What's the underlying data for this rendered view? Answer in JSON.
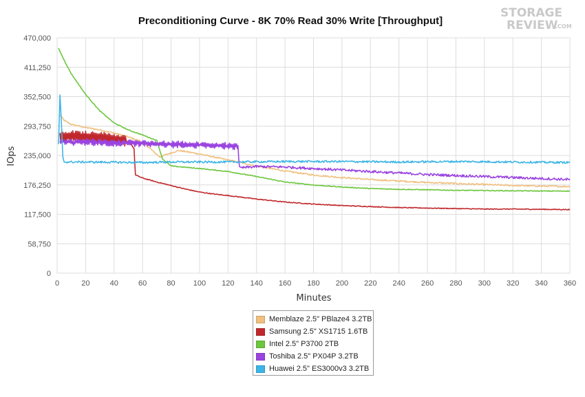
{
  "logo": {
    "line1": "STORAGE",
    "line2": "REVIEW",
    "suffix": ".COM"
  },
  "chart_data": {
    "type": "line",
    "title": "Preconditioning Curve - 8K 70% Read 30% Write [Throughput]",
    "xlabel": "Minutes",
    "ylabel": "IOps",
    "xlim": [
      0,
      360
    ],
    "ylim": [
      0,
      470000
    ],
    "x_ticks": [
      0,
      20,
      40,
      60,
      80,
      100,
      120,
      140,
      160,
      180,
      200,
      220,
      240,
      260,
      280,
      300,
      320,
      340,
      360
    ],
    "y_ticks": [
      0,
      58750,
      117500,
      176250,
      235000,
      293750,
      352500,
      411250,
      470000
    ],
    "y_tick_labels": [
      "0",
      "58,750",
      "117,500",
      "176,250",
      "235,000",
      "293,750",
      "352,500",
      "411,250",
      "470,000"
    ],
    "grid": true,
    "legend_position": "bottom",
    "series": [
      {
        "name": "Memblaze 2.5\" PBlaze4 3.2TB",
        "color": "#f0c080",
        "noise": 1500,
        "points": [
          [
            2,
            316000
          ],
          [
            5,
            305000
          ],
          [
            10,
            297000
          ],
          [
            20,
            291000
          ],
          [
            30,
            286000
          ],
          [
            40,
            280000
          ],
          [
            50,
            272000
          ],
          [
            60,
            262000
          ],
          [
            68,
            242000
          ],
          [
            72,
            232000
          ],
          [
            78,
            238000
          ],
          [
            85,
            245000
          ],
          [
            90,
            243000
          ],
          [
            100,
            238000
          ],
          [
            110,
            232000
          ],
          [
            120,
            226000
          ],
          [
            140,
            214000
          ],
          [
            160,
            204000
          ],
          [
            180,
            196000
          ],
          [
            200,
            191000
          ],
          [
            220,
            187000
          ],
          [
            240,
            184000
          ],
          [
            260,
            181000
          ],
          [
            280,
            179000
          ],
          [
            300,
            177000
          ],
          [
            320,
            175000
          ],
          [
            340,
            174000
          ],
          [
            360,
            173000
          ]
        ]
      },
      {
        "name": "Samsung 2.5\" XS1715 1.6TB",
        "color": "#c0282c",
        "noise": 800,
        "osc_amp": 11000,
        "osc_until": 48,
        "points": [
          [
            2,
            272000
          ],
          [
            10,
            274000
          ],
          [
            20,
            273000
          ],
          [
            30,
            271000
          ],
          [
            40,
            268000
          ],
          [
            48,
            264000
          ],
          [
            52,
            258000
          ],
          [
            54,
            248000
          ],
          [
            55,
            196000
          ],
          [
            60,
            190000
          ],
          [
            70,
            182000
          ],
          [
            80,
            175000
          ],
          [
            90,
            168000
          ],
          [
            100,
            162000
          ],
          [
            110,
            158000
          ],
          [
            120,
            155000
          ],
          [
            140,
            148000
          ],
          [
            160,
            142000
          ],
          [
            180,
            138000
          ],
          [
            200,
            135000
          ],
          [
            220,
            133000
          ],
          [
            240,
            131000
          ],
          [
            260,
            130000
          ],
          [
            280,
            129000
          ],
          [
            300,
            128000
          ],
          [
            320,
            128000
          ],
          [
            340,
            127500
          ],
          [
            360,
            127000
          ]
        ]
      },
      {
        "name": "Intel 2.5\" P3700 2TB",
        "color": "#6cc63e",
        "noise": 800,
        "points": [
          [
            1,
            449000
          ],
          [
            5,
            425000
          ],
          [
            10,
            398000
          ],
          [
            20,
            357000
          ],
          [
            30,
            324000
          ],
          [
            40,
            300000
          ],
          [
            50,
            286000
          ],
          [
            60,
            276000
          ],
          [
            70,
            265000
          ],
          [
            74,
            228000
          ],
          [
            80,
            214000
          ],
          [
            100,
            209000
          ],
          [
            120,
            203000
          ],
          [
            140,
            193000
          ],
          [
            160,
            182000
          ],
          [
            180,
            176000
          ],
          [
            200,
            172000
          ],
          [
            220,
            169000
          ],
          [
            240,
            167500
          ],
          [
            260,
            166500
          ],
          [
            280,
            165500
          ],
          [
            300,
            165000
          ],
          [
            320,
            164500
          ],
          [
            340,
            164000
          ],
          [
            360,
            164000
          ]
        ]
      },
      {
        "name": "Toshiba 2.5\" PX04P 3.2TB",
        "color": "#9a44e0",
        "noise": 2500,
        "osc_amp": 5000,
        "osc_until": 128,
        "points": [
          [
            2,
            262000
          ],
          [
            20,
            262000
          ],
          [
            40,
            260000
          ],
          [
            60,
            259000
          ],
          [
            80,
            257000
          ],
          [
            100,
            256000
          ],
          [
            120,
            254000
          ],
          [
            127,
            253000
          ],
          [
            128,
            210000
          ],
          [
            140,
            213000
          ],
          [
            160,
            212000
          ],
          [
            180,
            209000
          ],
          [
            200,
            206000
          ],
          [
            220,
            203000
          ],
          [
            240,
            200000
          ],
          [
            260,
            197000
          ],
          [
            280,
            195000
          ],
          [
            300,
            193000
          ],
          [
            320,
            191000
          ],
          [
            340,
            189000
          ],
          [
            360,
            187000
          ]
        ]
      },
      {
        "name": "Huawei 2.5\" ES3000v3 3.2TB",
        "color": "#3db5e6",
        "noise": 2000,
        "points": [
          [
            1,
            258000
          ],
          [
            2,
            355000
          ],
          [
            3,
            300000
          ],
          [
            4,
            232000
          ],
          [
            5,
            222000
          ],
          [
            20,
            222000
          ],
          [
            60,
            221000
          ],
          [
            80,
            222000
          ],
          [
            100,
            222000
          ],
          [
            120,
            222000
          ],
          [
            160,
            223000
          ],
          [
            200,
            223000
          ],
          [
            240,
            222000
          ],
          [
            280,
            223000
          ],
          [
            320,
            222000
          ],
          [
            360,
            221000
          ]
        ]
      }
    ]
  }
}
